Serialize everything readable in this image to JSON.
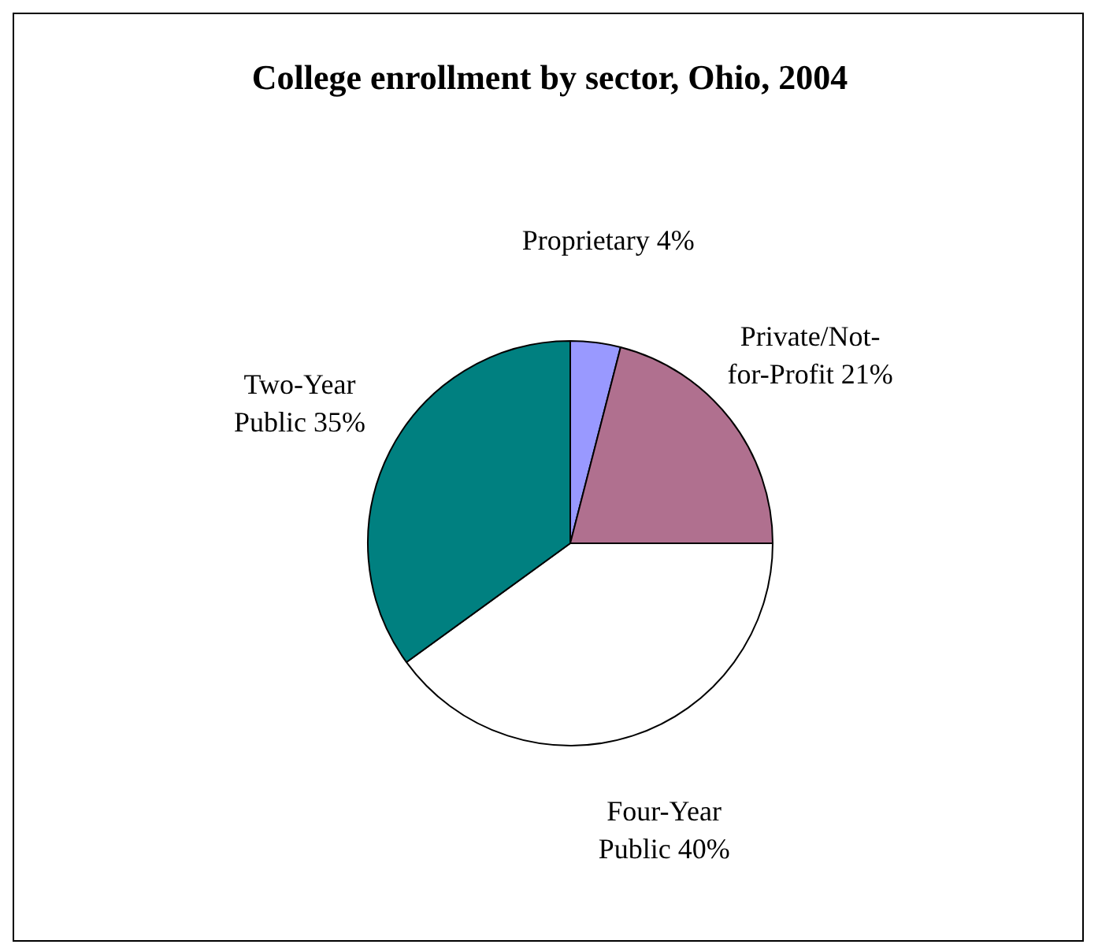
{
  "chart_data": {
    "type": "pie",
    "title": "College enrollment by sector, Ohio, 2004",
    "categories": [
      "Proprietary",
      "Private/Not-for-Profit",
      "Four-Year Public",
      "Two-Year Public"
    ],
    "values": [
      4,
      21,
      40,
      35
    ],
    "value_labels": [
      "4%",
      "21%",
      "40%",
      "35%"
    ],
    "colors": [
      "#9999ff",
      "#b0708f",
      "#ffffff",
      "#008080"
    ],
    "legend": false
  }
}
